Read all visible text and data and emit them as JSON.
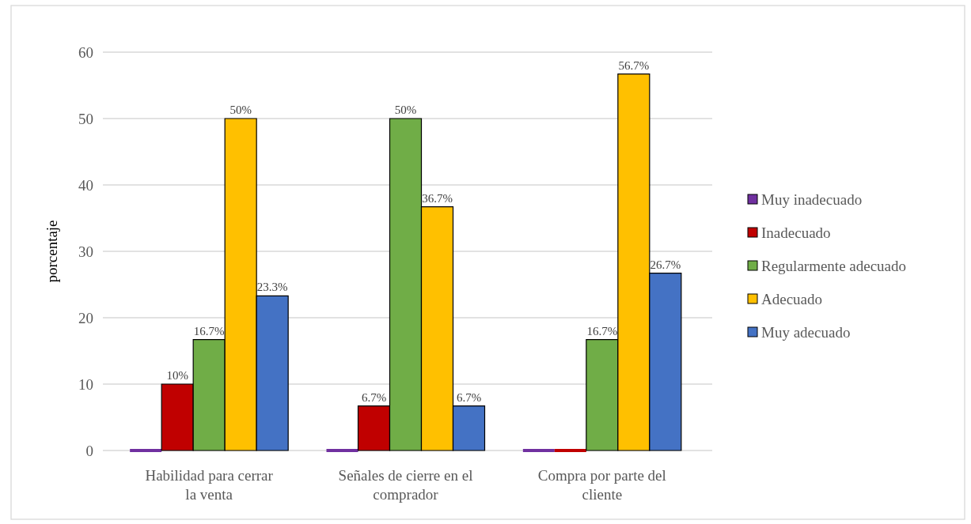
{
  "chart_data": {
    "type": "bar",
    "ylabel": "porcentaje",
    "categories": [
      "Habilidad para cerrar la venta",
      "Señales de cierre en el comprador",
      "Compra por parte del cliente"
    ],
    "series": [
      {
        "name": "Muy inadecuado",
        "color": "#7030a0",
        "values": [
          0,
          0,
          0
        ]
      },
      {
        "name": "Inadecuado",
        "color": "#c00000",
        "values": [
          10,
          6.7,
          0
        ],
        "value_labels": [
          "10%",
          "6.7%",
          null
        ]
      },
      {
        "name": "Regularmente adecuado",
        "color": "#70ad47",
        "values": [
          16.7,
          50,
          16.7
        ],
        "value_labels": [
          "16.7%",
          "50%",
          "16.7%"
        ]
      },
      {
        "name": "Adecuado",
        "color": "#ffc000",
        "values": [
          50,
          36.7,
          56.7
        ],
        "value_labels": [
          "50%",
          "36.7%",
          "56.7%"
        ]
      },
      {
        "name": "Muy adecuado",
        "color": "#4472c4",
        "values": [
          23.3,
          6.7,
          26.7
        ],
        "value_labels": [
          "23.3%",
          "6.7%",
          "26.7%"
        ]
      }
    ],
    "ylim": [
      0,
      60
    ],
    "yticks": [
      0,
      10,
      20,
      30,
      40,
      50,
      60
    ],
    "grid": "y",
    "legend": "right"
  }
}
